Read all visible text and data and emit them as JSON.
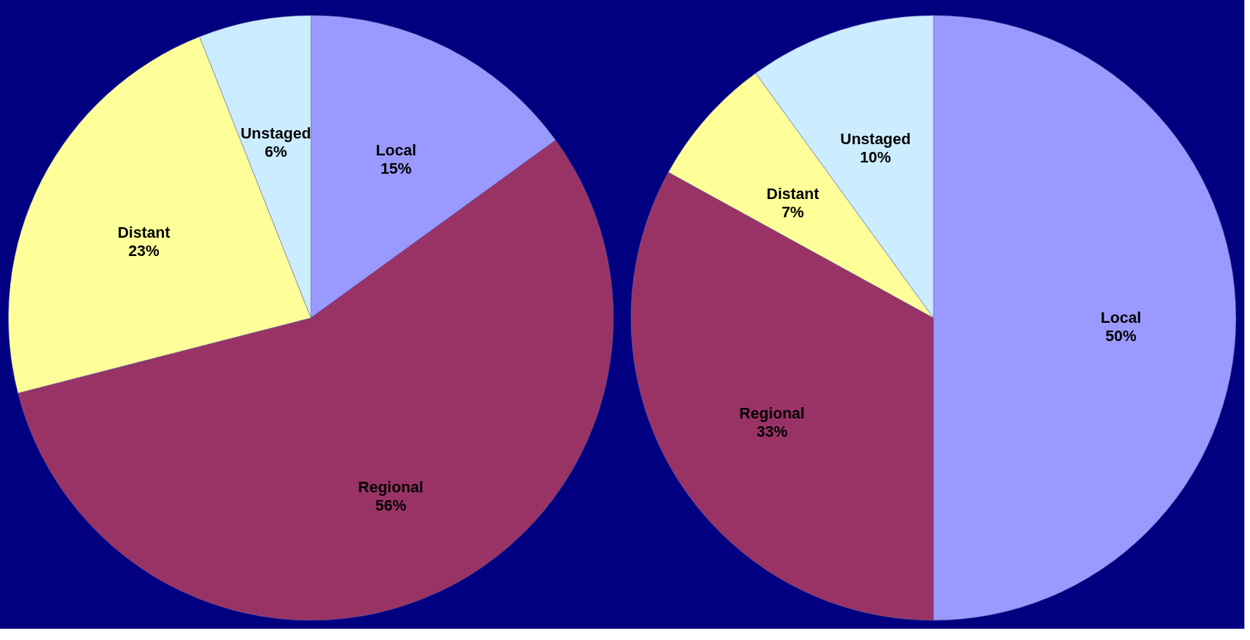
{
  "chart_data": [
    {
      "type": "pie",
      "categories": [
        "Local",
        "Regional",
        "Distant",
        "Unstaged"
      ],
      "values": [
        15,
        56,
        23,
        6
      ],
      "value_labels": [
        "15%",
        "56%",
        "23%",
        "6%"
      ],
      "colors": [
        "#9999ff",
        "#993366",
        "#ffff99",
        "#ccecff"
      ],
      "legend": false
    },
    {
      "type": "pie",
      "categories": [
        "Local",
        "Regional",
        "Distant",
        "Unstaged"
      ],
      "values": [
        50,
        33,
        7,
        10
      ],
      "value_labels": [
        "50%",
        "33%",
        "7%",
        "10%"
      ],
      "colors": [
        "#9999ff",
        "#993366",
        "#ffff99",
        "#ccecff"
      ],
      "legend": false
    }
  ]
}
